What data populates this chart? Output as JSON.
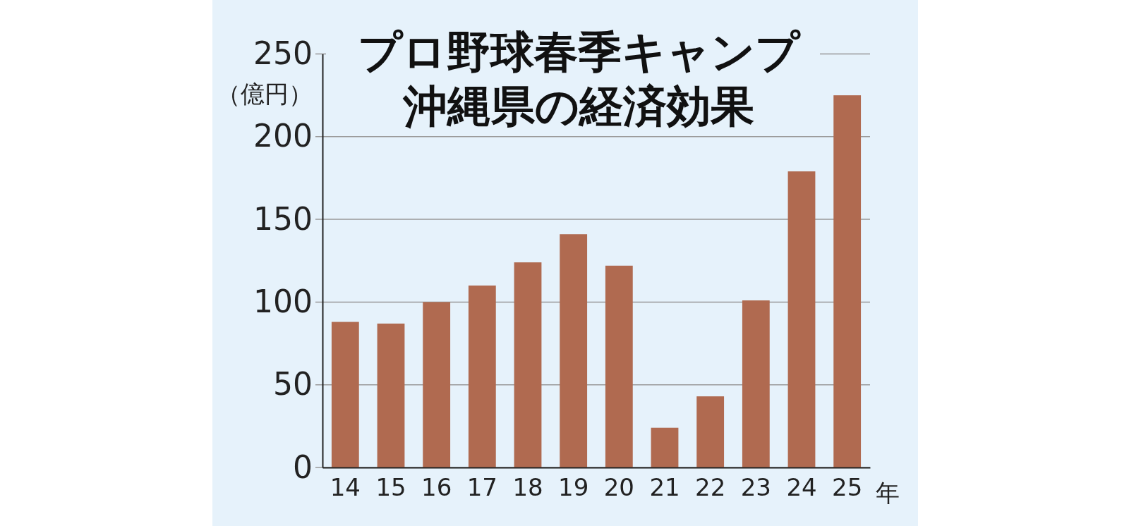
{
  "chart_data": {
    "type": "bar",
    "title": "プロ野球春季キャンプ",
    "subtitle": "沖縄県の経済効果",
    "ylabel": "（億円）",
    "xlabel": "年",
    "categories": [
      "14",
      "15",
      "16",
      "17",
      "18",
      "19",
      "20",
      "21",
      "22",
      "23",
      "24",
      "25"
    ],
    "values": [
      88,
      87,
      100,
      110,
      124,
      141,
      122,
      24,
      43,
      101,
      179,
      225
    ],
    "color": "#b06a50",
    "ylim": [
      0,
      250
    ],
    "yticks": [
      0,
      50,
      100,
      150,
      200,
      250
    ],
    "grid": "y"
  }
}
